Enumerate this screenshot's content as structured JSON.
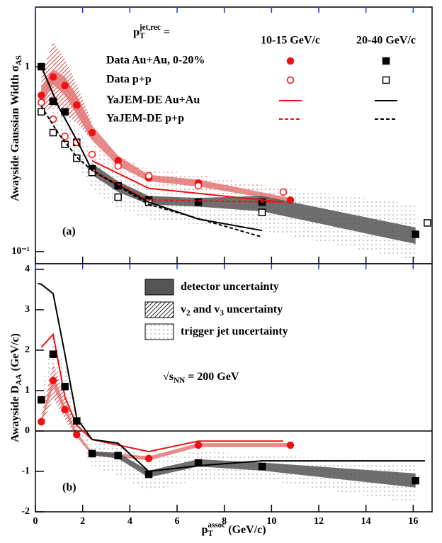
{
  "chart_data": [
    {
      "type": "scatter",
      "ylog": true,
      "ylim": [
        0.086,
        2.1
      ],
      "xlim": [
        0,
        16.8
      ],
      "yticks": [
        {
          "value": 0.1,
          "label": "10⁻¹"
        },
        1
      ],
      "ylabel": [
        {
          "text": "Awayside Gaussian Width σ"
        },
        {
          "sub": "AS"
        }
      ],
      "annotations": [
        [
          {
            "text": "(a)"
          }
        ]
      ],
      "legend": {
        "header": [
          {
            "text": "p"
          },
          {
            "sub": "T"
          },
          {
            "sup": "jet,rec"
          },
          {
            "text": " ="
          }
        ],
        "columns": [
          "10-15 GeV/c",
          "20-40 GeV/c"
        ],
        "rows": [
          "Data Au+Au, 0-20%",
          "Data p+p",
          "YaJEM-DE Au+Au",
          "YaJEM-DE p+p"
        ]
      },
      "bands": [
        {
          "style": "dots",
          "color": "#888888",
          "x": [
            0.25,
            0.75,
            1.25,
            1.75,
            2.4,
            3.5,
            4.8,
            6.9,
            9.6,
            16.1
          ],
          "lo": [
            0.75,
            0.5,
            0.42,
            0.3,
            0.22,
            0.17,
            0.15,
            0.14,
            0.13,
            0.09
          ],
          "hi": [
            1.1,
            0.8,
            0.68,
            0.48,
            0.33,
            0.27,
            0.23,
            0.23,
            0.23,
            0.18
          ]
        },
        {
          "style": "dots",
          "color": "#e06060",
          "x": [
            2.4,
            3.5,
            4.8,
            6.9,
            10.5
          ],
          "lo": [
            0.33,
            0.27,
            0.235,
            0.21,
            0.195
          ],
          "hi": [
            0.4,
            0.33,
            0.28,
            0.26,
            0.22
          ]
        },
        {
          "style": "hatch",
          "color": "#cc2222",
          "x": [
            0.25,
            0.75,
            1.25,
            1.75,
            2.4
          ],
          "lo": [
            0.55,
            0.62,
            0.55,
            0.5,
            0.4
          ],
          "hi": [
            0.9,
            1.35,
            1.1,
            0.8,
            0.5
          ]
        },
        {
          "style": "detector",
          "color": "#e27575",
          "x": [
            0.25,
            0.75,
            1.25,
            1.75,
            2.4,
            3.5,
            4.8,
            6.9,
            10.8
          ],
          "lo": [
            0.62,
            0.8,
            0.7,
            0.55,
            0.4,
            0.29,
            0.24,
            0.225,
            0.185
          ],
          "hi": [
            0.78,
            0.97,
            0.88,
            0.7,
            0.48,
            0.33,
            0.26,
            0.245,
            0.195
          ]
        },
        {
          "style": "detector",
          "color": "#555555",
          "x": [
            2.4,
            3.5,
            4.8,
            6.9,
            9.6,
            16.1
          ],
          "lo": [
            0.26,
            0.21,
            0.18,
            0.175,
            0.165,
            0.11
          ],
          "hi": [
            0.3,
            0.24,
            0.2,
            0.195,
            0.2,
            0.135
          ]
        }
      ],
      "series": [
        {
          "color": "#ee1111",
          "marker": "circle",
          "filled": true,
          "dash": false,
          "x": [
            0.25,
            0.75,
            1.25,
            1.75,
            2.4,
            3.5,
            4.8,
            6.9,
            10.8
          ],
          "values": [
            0.7,
            0.88,
            0.79,
            0.62,
            0.44,
            0.31,
            0.25,
            0.235,
            0.19
          ]
        },
        {
          "color": "#000000",
          "marker": "square",
          "filled": true,
          "dash": false,
          "x": [
            0.25,
            0.75,
            1.25,
            1.75,
            2.4,
            3.5,
            4.8,
            6.9,
            9.6,
            16.1
          ],
          "values": [
            1.0,
            0.65,
            0.57,
            0.39,
            0.28,
            0.227,
            0.19,
            0.185,
            0.185,
            0.124
          ]
        },
        {
          "color": "#ee1111",
          "marker": "circle",
          "filled": false,
          "dash": false,
          "x": [
            0.25,
            0.75,
            1.25,
            1.75,
            2.4,
            3.5,
            4.8,
            6.9,
            10.5
          ],
          "values": [
            0.64,
            0.52,
            0.42,
            0.39,
            0.335,
            0.29,
            0.257,
            0.227,
            0.21
          ]
        },
        {
          "color": "#000000",
          "marker": "square",
          "filled": false,
          "dash": false,
          "x": [
            0.25,
            0.75,
            1.25,
            1.75,
            2.4,
            3.5,
            4.8,
            9.6,
            16.6
          ],
          "values": [
            0.57,
            0.44,
            0.38,
            0.32,
            0.268,
            0.197,
            0.185,
            0.163,
            0.143
          ]
        },
        {
          "color": "#ee1111",
          "marker": null,
          "filled": false,
          "dash": false,
          "x": [
            2.4,
            4.8,
            10.5
          ],
          "values": [
            0.31,
            0.22,
            0.185
          ]
        },
        {
          "color": "#000000",
          "marker": null,
          "filled": false,
          "dash": false,
          "x": [
            0.25,
            1,
            1.8,
            2.4,
            4.8,
            6.9,
            9.6
          ],
          "values": [
            1.0,
            0.6,
            0.39,
            0.275,
            0.185,
            0.15,
            0.13
          ]
        },
        {
          "color": "#ee1111",
          "marker": null,
          "filled": false,
          "dash": true,
          "x": [
            2.4,
            4.8,
            10.5
          ],
          "values": [
            0.275,
            0.19,
            0.185
          ]
        },
        {
          "color": "#000000",
          "marker": null,
          "filled": false,
          "dash": true,
          "x": [
            0.25,
            1,
            1.8,
            2.4,
            4.8,
            9.6
          ],
          "values": [
            0.61,
            0.43,
            0.32,
            0.275,
            0.18,
            0.12
          ]
        }
      ]
    },
    {
      "type": "scatter",
      "ylog": false,
      "ylim": [
        -2,
        4.14
      ],
      "xlim": [
        0,
        16.8
      ],
      "yticks": [
        -2,
        -1,
        0,
        1,
        2,
        3,
        4
      ],
      "xticks": [
        0,
        2,
        4,
        6,
        8,
        10,
        12,
        14,
        16
      ],
      "hline": 0,
      "ylabel": [
        {
          "text": "Awayside D"
        },
        {
          "sub": "AA"
        },
        {
          "text": " (GeV/c)"
        }
      ],
      "xlabel": [
        {
          "text": "p"
        },
        {
          "sub": "T"
        },
        {
          "sup": "assoc"
        },
        {
          "text": " (GeV/c)"
        }
      ],
      "annotations": [
        [
          {
            "text": "(b)"
          }
        ],
        [
          {
            "text": "√s"
          },
          {
            "sub": "NN"
          },
          {
            "text": " = 200 GeV"
          }
        ]
      ],
      "legend": {
        "entries": [
          {
            "style": "detector",
            "color": "#555555",
            "runs": [
              {
                "text": "detector uncertainty"
              }
            ]
          },
          {
            "style": "hatch",
            "color": "#000000",
            "runs": [
              {
                "text": "v"
              },
              {
                "sub": "2"
              },
              {
                "text": " and v"
              },
              {
                "sub": "3"
              },
              {
                "text": " uncertainty"
              }
            ]
          },
          {
            "style": "dots",
            "color": "#888888",
            "runs": [
              {
                "text": "trigger jet uncertainty"
              }
            ]
          }
        ]
      },
      "bands": [
        {
          "style": "dots",
          "color": "#888888",
          "x": [
            0.25,
            0.75,
            1.25,
            1.75,
            2.4,
            3.5,
            4.8,
            6.9,
            9.6,
            16.1
          ],
          "lo": [
            0.5,
            1.5,
            0.5,
            -0.1,
            -0.9,
            -1.1,
            -1.5,
            -1.2,
            -1.2,
            -1.8
          ],
          "hi": [
            1.0,
            2.4,
            1.6,
            0.6,
            -0.3,
            -0.3,
            -0.7,
            -0.5,
            -0.6,
            -0.8
          ]
        },
        {
          "style": "hatch",
          "color": "#cc2222",
          "x": [
            0.25,
            0.75,
            1.25,
            1.75
          ],
          "lo": [
            0.1,
            0.8,
            0.3,
            -0.2
          ],
          "hi": [
            0.4,
            1.7,
            0.8,
            0.1
          ]
        },
        {
          "style": "detector",
          "color": "#e27575",
          "x": [
            0.25,
            0.75,
            1.25,
            1.75,
            2.4,
            3.5,
            4.8,
            6.9,
            10.8
          ],
          "lo": [
            0.18,
            1.1,
            0.45,
            -0.15,
            -0.6,
            -0.64,
            -0.73,
            -0.4,
            -0.4
          ],
          "hi": [
            0.28,
            1.4,
            0.62,
            -0.03,
            -0.52,
            -0.56,
            -0.63,
            -0.3,
            -0.3
          ]
        },
        {
          "style": "detector",
          "color": "#555555",
          "x": [
            2.4,
            3.5,
            4.8,
            6.9,
            9.6,
            16.1
          ],
          "lo": [
            -0.6,
            -0.68,
            -1.15,
            -0.88,
            -0.98,
            -1.4
          ],
          "hi": [
            -0.5,
            -0.54,
            -0.98,
            -0.7,
            -0.78,
            -1.05
          ]
        }
      ],
      "series": [
        {
          "color": "#ee1111",
          "marker": null,
          "filled": false,
          "dash": false,
          "x": [
            0.25,
            0.75,
            1.25,
            1.75,
            2.4,
            4.8,
            6.9,
            10.5
          ],
          "values": [
            2.07,
            2.39,
            0.84,
            0.14,
            -0.21,
            -0.51,
            -0.25,
            -0.25
          ]
        },
        {
          "color": "#000000",
          "marker": null,
          "filled": false,
          "dash": false,
          "x": [
            0.1,
            0.25,
            0.75,
            1.25,
            1.75,
            2.4,
            3.5,
            4.8,
            6.9,
            9.6,
            16.5
          ],
          "values": [
            3.65,
            3.63,
            3.4,
            1.9,
            0.32,
            -0.21,
            -0.3,
            -1.0,
            -0.86,
            -0.74,
            -0.74
          ]
        },
        {
          "color": "#ee1111",
          "marker": "circle",
          "filled": true,
          "dash": false,
          "x": [
            0.25,
            0.75,
            1.25,
            1.75,
            2.4,
            3.5,
            4.8,
            6.9,
            10.8
          ],
          "values": [
            0.23,
            1.25,
            0.53,
            -0.09,
            -0.56,
            -0.6,
            -0.68,
            -0.35,
            -0.35
          ]
        },
        {
          "color": "#000000",
          "marker": "square",
          "filled": true,
          "dash": false,
          "x": [
            0.25,
            0.75,
            1.25,
            1.75,
            2.4,
            3.5,
            4.8,
            6.9,
            9.6,
            16.1
          ],
          "values": [
            0.77,
            1.9,
            1.1,
            0.25,
            -0.56,
            -0.61,
            -1.07,
            -0.79,
            -0.88,
            -1.23
          ]
        }
      ]
    }
  ]
}
